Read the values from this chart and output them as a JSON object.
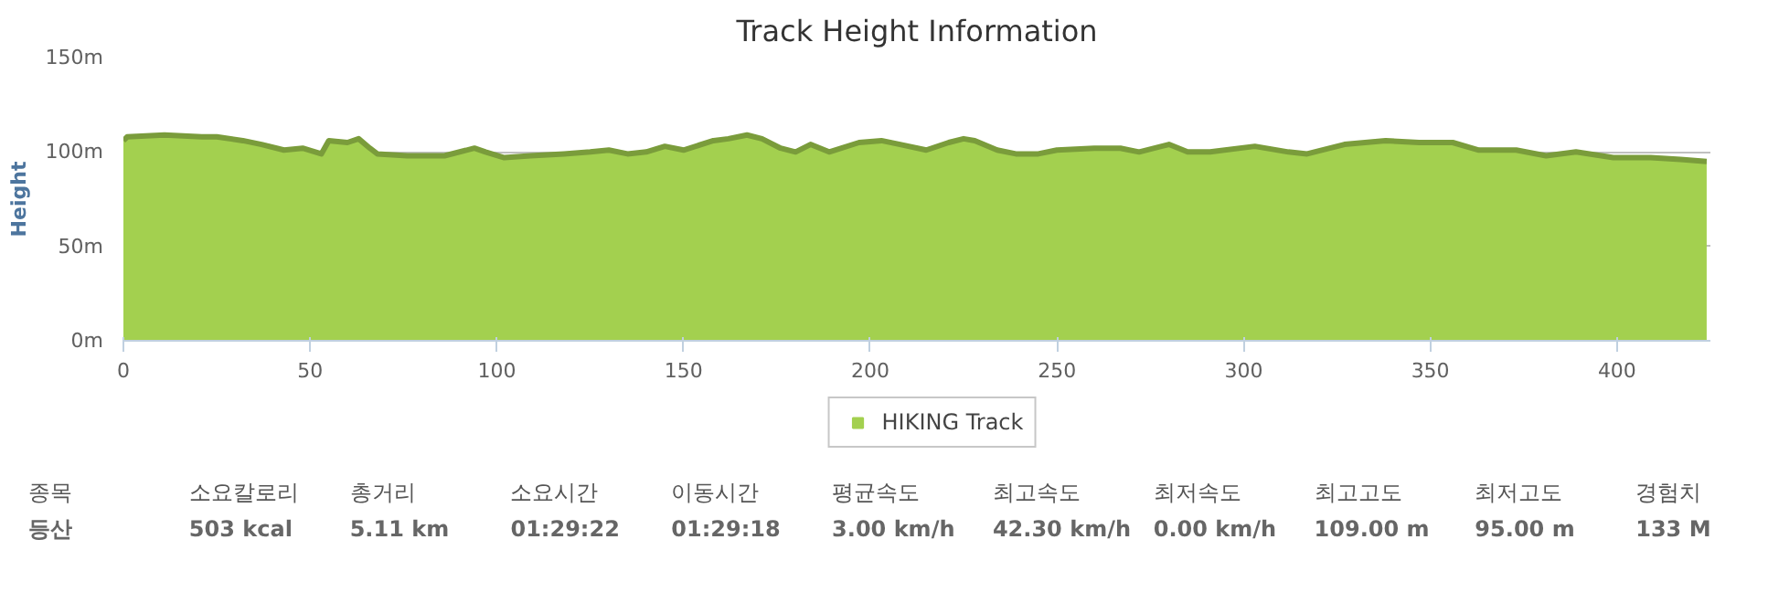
{
  "chart_data": [
    {
      "type": "area",
      "title": "Track Height Information",
      "ylabel": "Height",
      "xlim": [
        0,
        425
      ],
      "ylim": [
        0,
        150
      ],
      "xticks": [
        0,
        50,
        100,
        150,
        200,
        250,
        300,
        350,
        400
      ],
      "yticks": [
        {
          "value": 0,
          "label": "0m"
        },
        {
          "value": 50,
          "label": "50m"
        },
        {
          "value": 100,
          "label": "100m"
        },
        {
          "value": 150,
          "label": "150m"
        }
      ],
      "grid": "y",
      "legend": "bottom",
      "series": [
        {
          "name": "HIKING Track",
          "color": "#a3d04f",
          "x": [
            0,
            1,
            11,
            21,
            25,
            32,
            37,
            43,
            48,
            53,
            55,
            60,
            63,
            66,
            68,
            76,
            86,
            94,
            97,
            102,
            109,
            118,
            125,
            130,
            135,
            140,
            145,
            150,
            158,
            162,
            167,
            171,
            176,
            180,
            184,
            189,
            197,
            203,
            208,
            215,
            221,
            225,
            228,
            234,
            239,
            245,
            250,
            260,
            267,
            272,
            280,
            285,
            291,
            303,
            312,
            317,
            327,
            338,
            347,
            356,
            363,
            373,
            381,
            389,
            399,
            409,
            417,
            424
          ],
          "values": [
            106,
            108,
            109,
            108,
            108,
            106,
            104,
            101,
            102,
            99,
            106,
            105,
            107,
            102,
            99,
            98,
            98,
            102,
            100,
            97,
            98,
            99,
            100,
            101,
            99,
            100,
            103,
            101,
            106,
            107,
            109,
            107,
            102,
            100,
            104,
            100,
            105,
            106,
            104,
            101,
            105,
            107,
            106,
            101,
            99,
            99,
            101,
            102,
            102,
            100,
            104,
            100,
            100,
            103,
            100,
            99,
            104,
            106,
            105,
            105,
            101,
            101,
            98,
            100,
            97,
            97,
            96,
            95
          ]
        }
      ]
    },
    {
      "type": "other",
      "annotations": [
        "종목",
        "등산",
        "소요칼로리",
        "503 kcal",
        "총거리",
        "5.11 km",
        "소요시간",
        "01:29:22",
        "이동시간",
        "01:29:18",
        "평균속도",
        "3.00 km/h",
        "최고속도",
        "42.30 km/h",
        "최저속도",
        "0.00 km/h",
        "최고고도",
        "109.00 m",
        "최저고도",
        "95.00 m",
        "경험치",
        "133 M"
      ]
    }
  ]
}
